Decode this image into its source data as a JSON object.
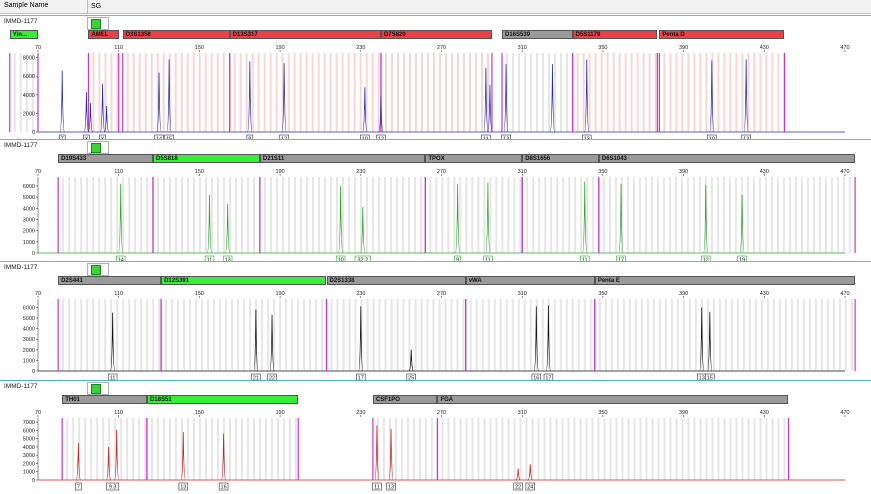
{
  "header": {
    "sample_name_label": "Sample Name",
    "sample_value": "SG"
  },
  "colors": {
    "blue": "#1f2ea8",
    "green": "#2aa52a",
    "black": "#111111",
    "red": "#cc1e1e",
    "bin_magenta": "#cc33cc",
    "marker_red": "#ec4048",
    "marker_gray": "#9a9a9a",
    "marker_green": "#3aed3a"
  },
  "panels": [
    {
      "label": "IMMD-1177",
      "color": "blue",
      "markers": [
        {
          "name": "Yin...",
          "fill": "green",
          "x1": 56,
          "x2": 70
        },
        {
          "name": "AMEL",
          "fill": "red",
          "x1": 95,
          "x2": 110
        },
        {
          "name": "D3S1358",
          "fill": "red",
          "x1": 112,
          "x2": 165
        },
        {
          "name": "D13S317",
          "fill": "red",
          "x1": 165,
          "x2": 240
        },
        {
          "name": "D7S820",
          "fill": "red",
          "x1": 240,
          "x2": 295
        },
        {
          "name": "D16S539",
          "fill": "gray",
          "x1": 300,
          "x2": 335
        },
        {
          "name": "D5S1179",
          "fill": "red",
          "x1": 335,
          "x2": 377
        },
        {
          "name": "Penta D",
          "fill": "red",
          "x1": 378,
          "x2": 440
        }
      ],
      "chart_data": {
        "type": "line",
        "x_ticks": [
          70,
          110,
          150,
          190,
          230,
          270,
          310,
          350,
          390,
          430,
          470
        ],
        "y_ticks": [
          0,
          2000,
          4000,
          6000,
          8000
        ],
        "ylim": [
          0,
          8500
        ],
        "xlim": [
          70,
          470
        ],
        "peaks": [
          {
            "x": 82,
            "y": 6600
          },
          {
            "x": 94,
            "y": 4300
          },
          {
            "x": 96,
            "y": 3100
          },
          {
            "x": 102,
            "y": 5200
          },
          {
            "x": 104,
            "y": 2800
          },
          {
            "x": 130,
            "y": 6400
          },
          {
            "x": 135,
            "y": 7800
          },
          {
            "x": 175,
            "y": 7600
          },
          {
            "x": 192,
            "y": 7400
          },
          {
            "x": 232,
            "y": 4800
          },
          {
            "x": 240,
            "y": 3800
          },
          {
            "x": 292,
            "y": 6900
          },
          {
            "x": 294,
            "y": 5100
          },
          {
            "x": 302,
            "y": 7300
          },
          {
            "x": 325,
            "y": 7300
          },
          {
            "x": 342,
            "y": 7800
          },
          {
            "x": 404,
            "y": 7700
          },
          {
            "x": 421,
            "y": 7800
          }
        ],
        "alleles": [
          {
            "label": "Z",
            "x": 82
          },
          {
            "label": "X",
            "x": 94
          },
          {
            "label": "Y",
            "x": 102
          },
          {
            "label": "14",
            "x": 130
          },
          {
            "label": "15",
            "x": 135
          },
          {
            "label": "8",
            "x": 175
          },
          {
            "label": "12",
            "x": 192
          },
          {
            "label": "10",
            "x": 232
          },
          {
            "label": "12",
            "x": 240
          },
          {
            "label": "11",
            "x": 292
          },
          {
            "label": "13",
            "x": 302
          },
          {
            "label": "13",
            "x": 342
          },
          {
            "label": "10",
            "x": 404
          },
          {
            "label": "13",
            "x": 421
          }
        ]
      }
    },
    {
      "label": "IMMD-1177",
      "color": "green",
      "markers": [
        {
          "name": "D19S433",
          "fill": "gray",
          "x1": 80,
          "x2": 127
        },
        {
          "name": "D5S818",
          "fill": "green",
          "x1": 127,
          "x2": 180
        },
        {
          "name": "D21S11",
          "fill": "gray",
          "x1": 180,
          "x2": 262
        },
        {
          "name": "TPOX",
          "fill": "gray",
          "x1": 262,
          "x2": 310
        },
        {
          "name": "D8S1656",
          "fill": "gray",
          "x1": 310,
          "x2": 348
        },
        {
          "name": "D6S1043",
          "fill": "gray",
          "x1": 348,
          "x2": 475
        }
      ],
      "chart_data": {
        "type": "line",
        "x_ticks": [
          70,
          110,
          150,
          190,
          230,
          270,
          310,
          350,
          390,
          430,
          470
        ],
        "y_ticks": [
          0,
          1000,
          2000,
          3000,
          4000,
          5000,
          6000
        ],
        "ylim": [
          0,
          6800
        ],
        "xlim": [
          70,
          470
        ],
        "peaks": [
          {
            "x": 111,
            "y": 6200
          },
          {
            "x": 155,
            "y": 5200
          },
          {
            "x": 164,
            "y": 4400
          },
          {
            "x": 220,
            "y": 6000
          },
          {
            "x": 231,
            "y": 4100
          },
          {
            "x": 278,
            "y": 6200
          },
          {
            "x": 293,
            "y": 6300
          },
          {
            "x": 341,
            "y": 6400
          },
          {
            "x": 359,
            "y": 6200
          },
          {
            "x": 401,
            "y": 6100
          },
          {
            "x": 419,
            "y": 5200
          }
        ],
        "alleles": [
          {
            "label": "14",
            "x": 111
          },
          {
            "label": "11",
            "x": 155
          },
          {
            "label": "13",
            "x": 164
          },
          {
            "label": "10",
            "x": 220
          },
          {
            "label": "32.2",
            "x": 231
          },
          {
            "label": "9",
            "x": 278
          },
          {
            "label": "11",
            "x": 293
          },
          {
            "label": "11",
            "x": 341
          },
          {
            "label": "17",
            "x": 359
          },
          {
            "label": "12",
            "x": 401
          },
          {
            "label": "19",
            "x": 419
          }
        ]
      }
    },
    {
      "label": "IMMD-1177",
      "color": "black",
      "markers": [
        {
          "name": "D2S441",
          "fill": "gray",
          "x1": 80,
          "x2": 131
        },
        {
          "name": "D12S391",
          "fill": "green",
          "x1": 131,
          "x2": 213
        },
        {
          "name": "D2S1338",
          "fill": "gray",
          "x1": 213,
          "x2": 282
        },
        {
          "name": "vWA",
          "fill": "gray",
          "x1": 282,
          "x2": 346
        },
        {
          "name": "Penta E",
          "fill": "gray",
          "x1": 346,
          "x2": 475
        }
      ],
      "chart_data": {
        "type": "line",
        "x_ticks": [
          70,
          110,
          150,
          190,
          230,
          270,
          310,
          350,
          390,
          430,
          470
        ],
        "y_ticks": [
          0,
          1000,
          2000,
          3000,
          4000,
          5000,
          6000
        ],
        "ylim": [
          0,
          6800
        ],
        "xlim": [
          70,
          470
        ],
        "peaks": [
          {
            "x": 107,
            "y": 5500
          },
          {
            "x": 178,
            "y": 5800
          },
          {
            "x": 186,
            "y": 5300
          },
          {
            "x": 230,
            "y": 6100
          },
          {
            "x": 255,
            "y": 2000
          },
          {
            "x": 317,
            "y": 6100
          },
          {
            "x": 323,
            "y": 6200
          },
          {
            "x": 399,
            "y": 6000
          },
          {
            "x": 403,
            "y": 5600
          }
        ],
        "alleles": [
          {
            "label": "11",
            "x": 107
          },
          {
            "label": "21",
            "x": 178
          },
          {
            "label": "22",
            "x": 186
          },
          {
            "label": "17",
            "x": 230
          },
          {
            "label": "25",
            "x": 255
          },
          {
            "label": "16",
            "x": 317
          },
          {
            "label": "17",
            "x": 323
          },
          {
            "label": "13",
            "x": 399
          },
          {
            "label": "15",
            "x": 403
          }
        ]
      }
    },
    {
      "label": "IMMD-1177",
      "color": "red",
      "markers": [
        {
          "name": "TH01",
          "fill": "gray",
          "x1": 82,
          "x2": 124
        },
        {
          "name": "D18S51",
          "fill": "green",
          "x1": 124,
          "x2": 199
        },
        {
          "name": "CSF1PO",
          "fill": "gray",
          "x1": 236,
          "x2": 268
        },
        {
          "name": "FGA",
          "fill": "gray",
          "x1": 268,
          "x2": 442
        }
      ],
      "chart_data": {
        "type": "line",
        "x_ticks": [
          70,
          110,
          150,
          190,
          230,
          270,
          310,
          350,
          390,
          430,
          470
        ],
        "y_ticks": [
          0,
          1000,
          2000,
          3000,
          4000,
          5000,
          6000,
          7000
        ],
        "ylim": [
          0,
          7500
        ],
        "xlim": [
          70,
          470
        ],
        "peaks": [
          {
            "x": 90,
            "y": 4500
          },
          {
            "x": 105,
            "y": 4000
          },
          {
            "x": 109,
            "y": 6100
          },
          {
            "x": 142,
            "y": 5800
          },
          {
            "x": 162,
            "y": 5600
          },
          {
            "x": 238,
            "y": 6600
          },
          {
            "x": 245,
            "y": 6200
          },
          {
            "x": 308,
            "y": 1400
          },
          {
            "x": 314,
            "y": 1900
          }
        ],
        "alleles": [
          {
            "label": "7",
            "x": 90
          },
          {
            "label": "9.3",
            "x": 107
          },
          {
            "label": "13",
            "x": 142
          },
          {
            "label": "16",
            "x": 162
          },
          {
            "label": "11",
            "x": 238
          },
          {
            "label": "13",
            "x": 245
          },
          {
            "label": "22",
            "x": 308
          },
          {
            "label": "24",
            "x": 314
          }
        ]
      }
    }
  ]
}
